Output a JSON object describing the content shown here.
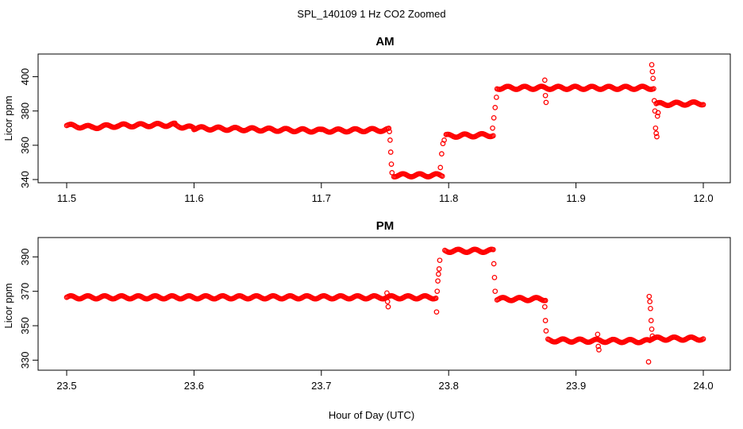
{
  "figure": {
    "title": "SPL_140109  1 Hz CO2 Zoomed",
    "xlabel": "Hour of Day (UTC)",
    "point_color": "#ff0000"
  },
  "chart_data": [
    {
      "type": "scatter",
      "title": "AM",
      "ylabel": "Licor ppm",
      "xlim": [
        11.5,
        12.0
      ],
      "ylim": [
        340,
        410
      ],
      "xticks": [
        "11.5",
        "11.6",
        "11.7",
        "11.8",
        "11.9",
        "12.0"
      ],
      "yticks": [
        "340",
        "360",
        "380",
        "400"
      ],
      "segments": [
        {
          "x0": 11.5,
          "x1": 11.52,
          "y0": 371.5,
          "y1": 370.5
        },
        {
          "x0": 11.52,
          "x1": 11.54,
          "y0": 370.5,
          "y1": 371.5
        },
        {
          "x0": 11.54,
          "x1": 11.585,
          "y0": 371.5,
          "y1": 372.0
        },
        {
          "x0": 11.585,
          "x1": 11.6,
          "y0": 371.5,
          "y1": 370.0
        },
        {
          "x0": 11.6,
          "x1": 11.7,
          "y0": 370.0,
          "y1": 368.5
        },
        {
          "x0": 11.7,
          "x1": 11.753,
          "y0": 368.5,
          "y1": 369.0
        },
        {
          "x0": 11.757,
          "x1": 11.795,
          "y0": 342.5,
          "y1": 342.5
        },
        {
          "x0": 11.798,
          "x1": 11.835,
          "y0": 365.5,
          "y1": 366.0
        },
        {
          "x0": 11.838,
          "x1": 11.96,
          "y0": 393.5,
          "y1": 393.5
        },
        {
          "x0": 11.963,
          "x1": 12.0,
          "y0": 384.0,
          "y1": 384.5
        }
      ],
      "points": [
        [
          11.7535,
          368
        ],
        [
          11.754,
          363
        ],
        [
          11.7545,
          356
        ],
        [
          11.755,
          349
        ],
        [
          11.7555,
          344
        ],
        [
          11.7935,
          347
        ],
        [
          11.7945,
          355
        ],
        [
          11.7955,
          361
        ],
        [
          11.7965,
          363
        ],
        [
          11.8345,
          370
        ],
        [
          11.8355,
          376
        ],
        [
          11.8365,
          382
        ],
        [
          11.8375,
          388
        ],
        [
          11.8755,
          398
        ],
        [
          11.876,
          389
        ],
        [
          11.8765,
          385
        ],
        [
          11.9595,
          407
        ],
        [
          11.96,
          403
        ],
        [
          11.9605,
          399
        ],
        [
          11.961,
          393
        ],
        [
          11.9615,
          386
        ],
        [
          11.962,
          380
        ],
        [
          11.9625,
          370
        ],
        [
          11.963,
          367
        ],
        [
          11.9635,
          365
        ],
        [
          11.964,
          377
        ],
        [
          11.9645,
          379
        ]
      ]
    },
    {
      "type": "scatter",
      "title": "PM",
      "ylabel": "Licor ppm",
      "xlim": [
        23.5,
        24.0
      ],
      "ylim": [
        326,
        398
      ],
      "xticks": [
        "23.5",
        "23.6",
        "23.7",
        "23.8",
        "23.9",
        "24.0"
      ],
      "yticks": [
        "330",
        "350",
        "370",
        "390"
      ],
      "segments": [
        {
          "x0": 23.5,
          "x1": 23.79,
          "y0": 366.5,
          "y1": 366.5
        },
        {
          "x0": 23.797,
          "x1": 23.835,
          "y0": 393.5,
          "y1": 393.5
        },
        {
          "x0": 23.838,
          "x1": 23.876,
          "y0": 365.5,
          "y1": 365.5
        },
        {
          "x0": 23.878,
          "x1": 23.958,
          "y0": 341.5,
          "y1": 341.0
        },
        {
          "x0": 23.958,
          "x1": 24.0,
          "y0": 342.5,
          "y1": 342.5
        }
      ],
      "points": [
        [
          23.7515,
          369
        ],
        [
          23.752,
          364
        ],
        [
          23.7525,
          361
        ],
        [
          23.7905,
          358
        ],
        [
          23.791,
          370
        ],
        [
          23.7915,
          376
        ],
        [
          23.792,
          380
        ],
        [
          23.7925,
          383
        ],
        [
          23.793,
          388
        ],
        [
          23.8355,
          386
        ],
        [
          23.836,
          378
        ],
        [
          23.8365,
          370
        ],
        [
          23.8755,
          361
        ],
        [
          23.876,
          353
        ],
        [
          23.8765,
          347
        ],
        [
          23.917,
          345
        ],
        [
          23.9175,
          338
        ],
        [
          23.918,
          336
        ],
        [
          23.9575,
          367
        ],
        [
          23.958,
          364
        ],
        [
          23.9585,
          360
        ],
        [
          23.959,
          353
        ],
        [
          23.9595,
          348
        ],
        [
          23.96,
          344
        ],
        [
          23.957,
          329
        ]
      ]
    }
  ]
}
